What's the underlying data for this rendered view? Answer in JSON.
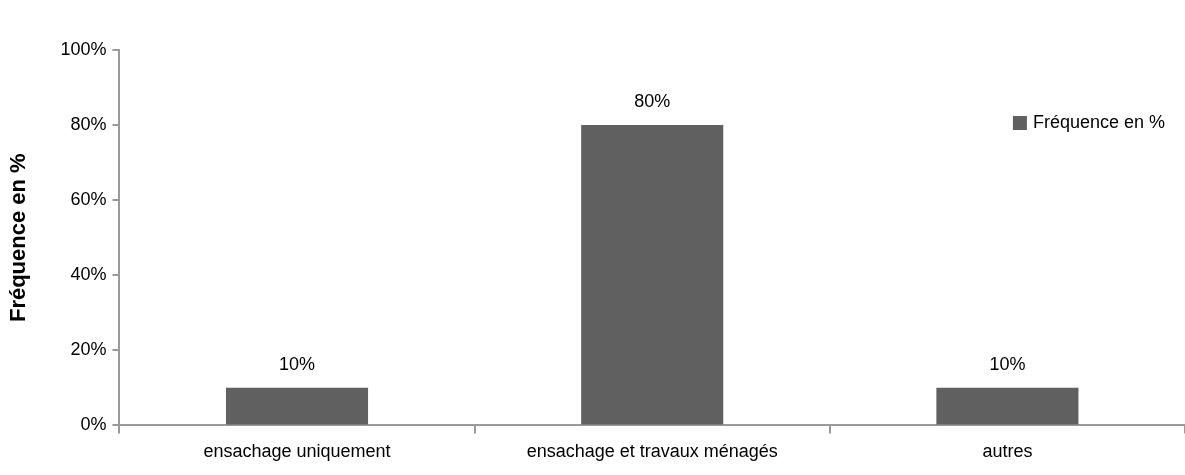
{
  "chart_data": {
    "type": "bar",
    "ylabel": "Fréquence en %",
    "categories": [
      "ensachage uniquement",
      "ensachage et travaux ménagés",
      "autres"
    ],
    "series": [
      {
        "name": "Fréquence en %",
        "color": "#606060",
        "values": [
          10,
          80,
          10
        ],
        "value_labels": [
          "10%",
          "80%",
          "10%"
        ]
      }
    ],
    "ylim": [
      0,
      100
    ],
    "yticks": [
      {
        "value": 0,
        "label": "0%"
      },
      {
        "value": 20,
        "label": "20%"
      },
      {
        "value": 40,
        "label": "40%"
      },
      {
        "value": 60,
        "label": "60%"
      },
      {
        "value": 80,
        "label": "80%"
      },
      {
        "value": 100,
        "label": "100%"
      }
    ],
    "legend": "top right"
  }
}
